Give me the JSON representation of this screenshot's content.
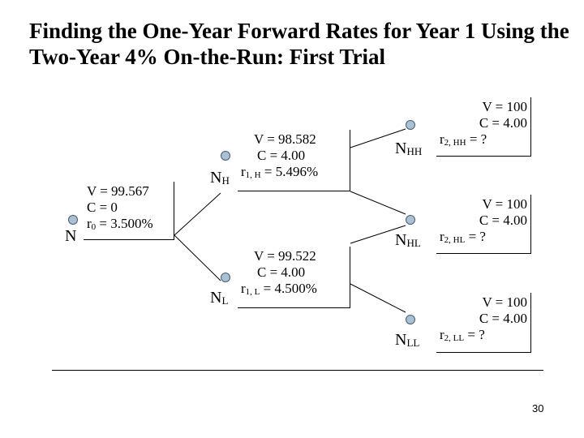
{
  "title": "Finding the One-Year Forward Rates for Year 1 Using the Two-Year 4% On-the-Run: First Trial",
  "nodes": {
    "n": {
      "label": "N",
      "v": "V = 99.567",
      "c": "C = 0",
      "r_sym": "r",
      "r_sub": "0",
      "r_val": " = 3.500%"
    },
    "nh": {
      "label": "N",
      "label_sub": "H",
      "v": "V = 98.582",
      "c": "C = 4.00",
      "r_sym": "r",
      "r_sub": "1, H",
      "r_val": " = 5.496%"
    },
    "nl": {
      "label": "N",
      "label_sub": "L",
      "v": "V = 99.522",
      "c": "C = 4.00",
      "r_sym": "r",
      "r_sub": "1, L",
      "r_val": " = 4.500%"
    },
    "nhh": {
      "label": "N",
      "label_sub": "HH",
      "v": "V = 100",
      "c": "C = 4.00",
      "r_sym": "r",
      "r_sub": "2, HH",
      "r_val": " = ?"
    },
    "nhl": {
      "label": "N",
      "label_sub": "HL",
      "v": "V = 100",
      "c": "C = 4.00",
      "r_sym": "r",
      "r_sub": "2, HL",
      "r_val": " = ?"
    },
    "nll": {
      "label": "N",
      "label_sub": "LL",
      "v": "V = 100",
      "c": "C = 4.00",
      "r_sym": "r",
      "r_sub": "2, LL",
      "r_val": " = ?"
    }
  },
  "page_number": "30",
  "colors": {
    "node_fill": "#a9c1d6",
    "node_border": "#4a5a6a"
  }
}
